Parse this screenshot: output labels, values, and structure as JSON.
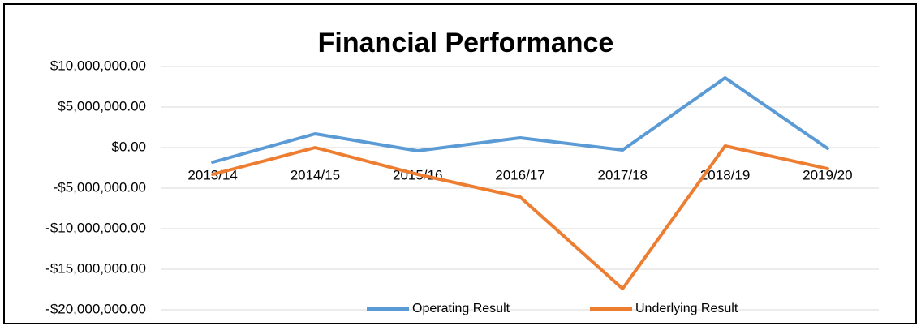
{
  "chart_data": {
    "type": "line",
    "title": "Financial Performance",
    "categories": [
      "2013/14",
      "2014/15",
      "2015/16",
      "2016/17",
      "2017/18",
      "2018/19",
      "2019/20"
    ],
    "series": [
      {
        "name": "Operating Result",
        "color": "#5b9bd5",
        "values": [
          -1800000,
          1700000,
          -400000,
          1200000,
          -300000,
          8600000,
          -100000
        ]
      },
      {
        "name": "Underlying Result",
        "color": "#ed7d31",
        "values": [
          -3300000,
          0,
          -3300000,
          -6100000,
          -17400000,
          200000,
          -2600000
        ]
      }
    ],
    "ylim": [
      -20000000,
      10000000
    ],
    "yticks": [
      {
        "value": -20000000,
        "label": "-$20,000,000.00"
      },
      {
        "value": -15000000,
        "label": "-$15,000,000.00"
      },
      {
        "value": -10000000,
        "label": "-$10,000,000.00"
      },
      {
        "value": -5000000,
        "label": "-$5,000,000.00"
      },
      {
        "value": 0,
        "label": "$0.00"
      },
      {
        "value": 5000000,
        "label": "$5,000,000.00"
      },
      {
        "value": 10000000,
        "label": "$10,000,000.00"
      }
    ],
    "grid": true,
    "legend": "bottom"
  }
}
